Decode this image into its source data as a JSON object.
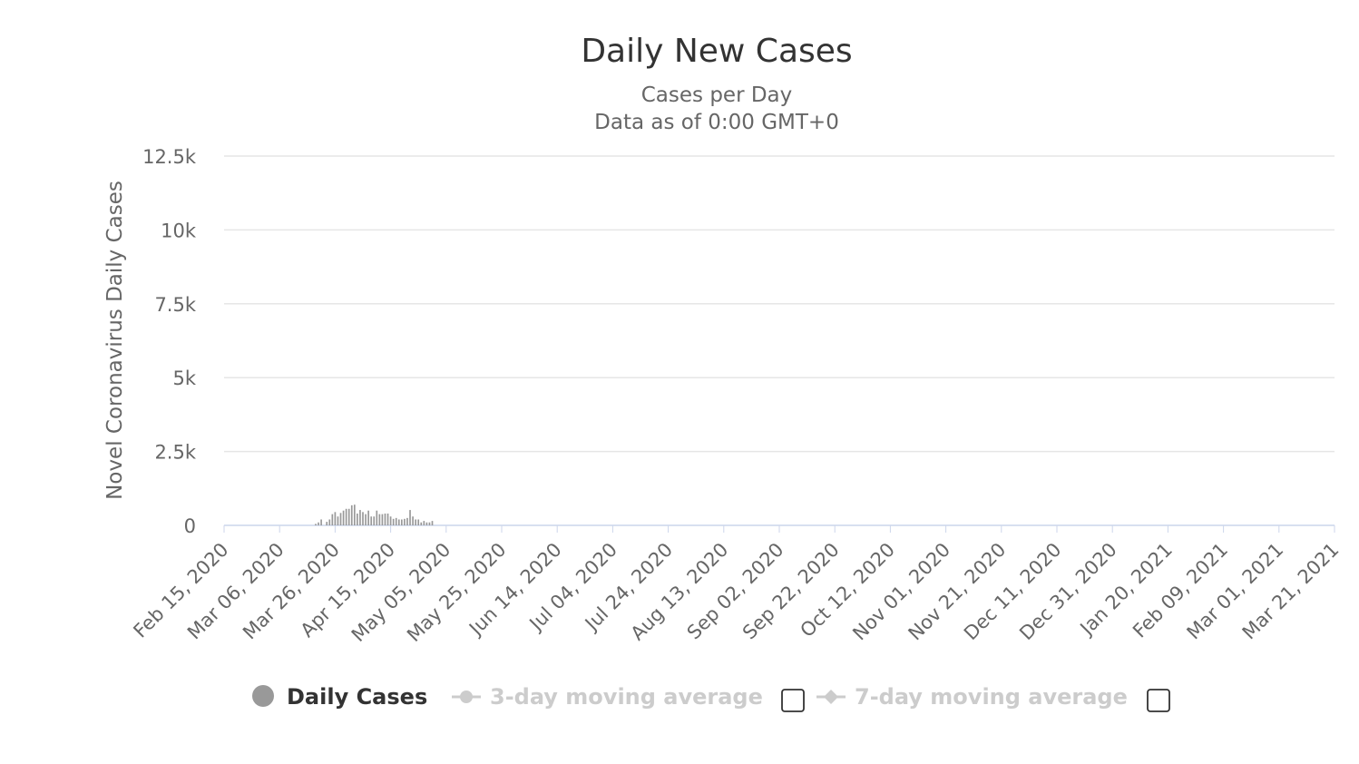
{
  "chart_data": {
    "type": "bar",
    "title": "Daily New Cases",
    "subtitle_lines": [
      "Cases per Day",
      "Data as of 0:00 GMT+0"
    ],
    "ylabel": "Novel Coronavirus Daily Cases",
    "xlabel": "",
    "ylim": [
      0,
      12500
    ],
    "yticks": [
      {
        "value": 0,
        "label": "0"
      },
      {
        "value": 2500,
        "label": "2.5k"
      },
      {
        "value": 5000,
        "label": "5k"
      },
      {
        "value": 7500,
        "label": "7.5k"
      },
      {
        "value": 10000,
        "label": "10k"
      },
      {
        "value": 12500,
        "label": "12.5k"
      }
    ],
    "x_start": "2020-02-15",
    "x_end": "2021-03-21",
    "xtick_labels": [
      "Feb 15, 2020",
      "Mar 06, 2020",
      "Mar 26, 2020",
      "Apr 15, 2020",
      "May 05, 2020",
      "May 25, 2020",
      "Jun 14, 2020",
      "Jul 04, 2020",
      "Jul 24, 2020",
      "Aug 13, 2020",
      "Sep 02, 2020",
      "Sep 22, 2020",
      "Oct 12, 2020",
      "Nov 01, 2020",
      "Nov 21, 2020",
      "Dec 11, 2020",
      "Dec 31, 2020",
      "Jan 20, 2021",
      "Feb 09, 2021",
      "Mar 01, 2021",
      "Mar 21, 2021"
    ],
    "grid": true,
    "bar_color": "#999999",
    "series": [
      {
        "name": "Daily Cases",
        "values": [
          0,
          0,
          0,
          0,
          0,
          0,
          0,
          0,
          0,
          0,
          0,
          0,
          0,
          0,
          0,
          0,
          0,
          0,
          0,
          0,
          0,
          0,
          0,
          0,
          0,
          0,
          0,
          0,
          0,
          0,
          0,
          0,
          0,
          50,
          100,
          200,
          0,
          120,
          200,
          380,
          450,
          300,
          420,
          500,
          560,
          560,
          680,
          700,
          400,
          520,
          450,
          380,
          500,
          300,
          300,
          500,
          380,
          380,
          400,
          400,
          300,
          220,
          250,
          200,
          200,
          220,
          250,
          520,
          300,
          200,
          200,
          100,
          150,
          100,
          100,
          150,
          0,
          0,
          0,
          0,
          0,
          0,
          0,
          0,
          0,
          0,
          0,
          0,
          0,
          0,
          0,
          0,
          0,
          0,
          0,
          0,
          0,
          0,
          0,
          0,
          0,
          0,
          0,
          0,
          0,
          0,
          0,
          0,
          0,
          0,
          0,
          0,
          0,
          0,
          0,
          0,
          0,
          0,
          0,
          0,
          0,
          0,
          0,
          0,
          0,
          0,
          0,
          0,
          0,
          0,
          0,
          0,
          0,
          0,
          0,
          0,
          0,
          0,
          0,
          0,
          0,
          0,
          0,
          0,
          0,
          0,
          0,
          0,
          0,
          0,
          0,
          0,
          0,
          0,
          0,
          0,
          0,
          0,
          0,
          0,
          0,
          0,
          0,
          0,
          0,
          0,
          0,
          0,
          0,
          0,
          0,
          0,
          0,
          0,
          0,
          0,
          0,
          0,
          0,
          0,
          0,
          0,
          0,
          0,
          0,
          0,
          0,
          0,
          0,
          0,
          0,
          0,
          0,
          0,
          0,
          0,
          0,
          0,
          0,
          0,
          0,
          0,
          0,
          0,
          0,
          0,
          0,
          0,
          0,
          0,
          0,
          0,
          0,
          0,
          0,
          0,
          0,
          0,
          0,
          0,
          0,
          0,
          0,
          0,
          0,
          0,
          0,
          0,
          0,
          0,
          0,
          0,
          0,
          0,
          0,
          0,
          0,
          0,
          0,
          0,
          0,
          0,
          0,
          0,
          0,
          0,
          0,
          0,
          0,
          0,
          0,
          0,
          0,
          0,
          0,
          0,
          0,
          0,
          0,
          0,
          0,
          0,
          0,
          0,
          0,
          0,
          0,
          0,
          0,
          0,
          0,
          0,
          0,
          0,
          0,
          0,
          0,
          0,
          0,
          0,
          0,
          0,
          0,
          0,
          0,
          0,
          0,
          0,
          0,
          0,
          0,
          0,
          0,
          0,
          0,
          0,
          0,
          0,
          0,
          0,
          0,
          0,
          0,
          0,
          0,
          0,
          0,
          0,
          0,
          0,
          0,
          0,
          0,
          0,
          0,
          0,
          0,
          0,
          0,
          0,
          0,
          0,
          0,
          0,
          0,
          0,
          0,
          0,
          0,
          0,
          0,
          0,
          0,
          0,
          0,
          0,
          0,
          0,
          0,
          0,
          0,
          0,
          0,
          0,
          0,
          0,
          0,
          0,
          0,
          0,
          0,
          0,
          0,
          0,
          0,
          0,
          0,
          0,
          0,
          0,
          0,
          0,
          0,
          0,
          0,
          0,
          0,
          0,
          0,
          0,
          0,
          0,
          0,
          0,
          0,
          0,
          0,
          0,
          0,
          0,
          0,
          0,
          0,
          0,
          0,
          0,
          0,
          0,
          0,
          0,
          0,
          0,
          0,
          0,
          0,
          0,
          0,
          0,
          0,
          0,
          0,
          0,
          0,
          0,
          0,
          0,
          0,
          0,
          0,
          0,
          0,
          0,
          0,
          0,
          0,
          0,
          0,
          0,
          0,
          0,
          0,
          0,
          0,
          0,
          0,
          0,
          0,
          0
        ]
      }
    ],
    "legend": [
      {
        "name": "Daily Cases",
        "active": true,
        "color": "#999999"
      },
      {
        "name": "3-day moving average",
        "active": false,
        "color": "#cccccc"
      },
      {
        "name": "7-day moving average",
        "active": false,
        "color": "#cccccc"
      }
    ],
    "legend_position": "bottom"
  }
}
